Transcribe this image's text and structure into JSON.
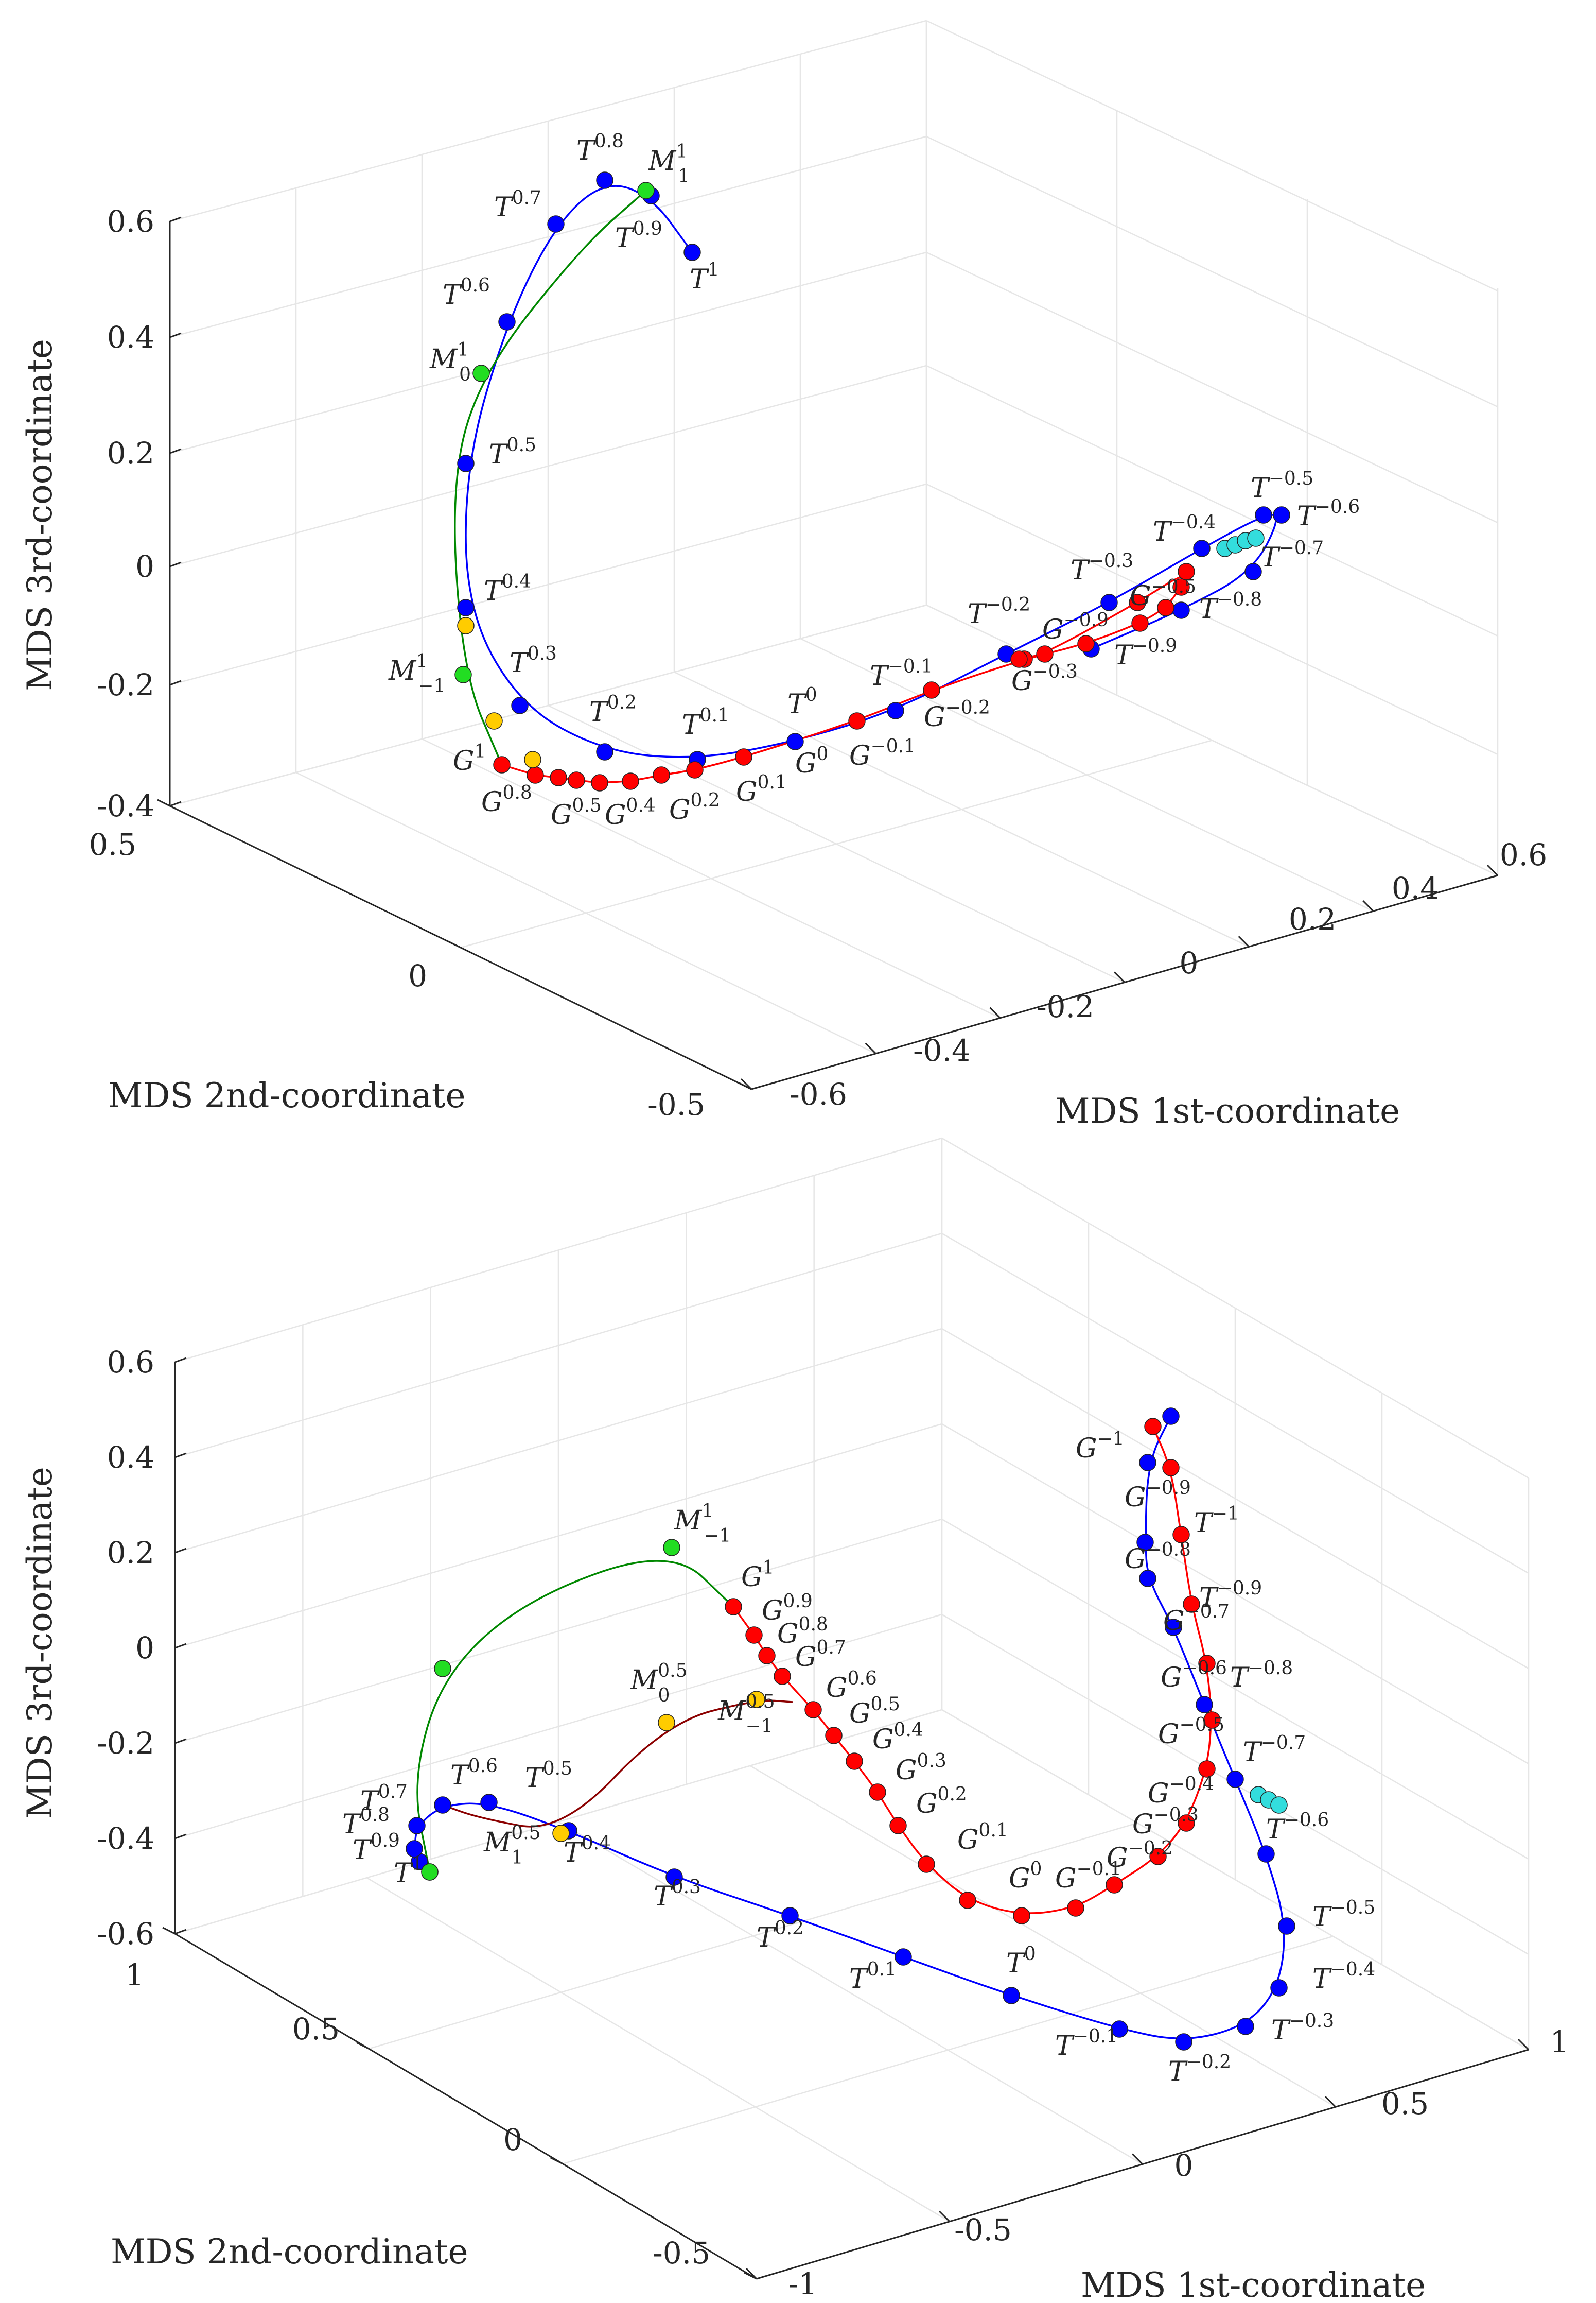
{
  "chart_data": [
    {
      "type": "line3d",
      "xlabel": "MDS 1st-coordinate",
      "ylabel": "MDS 2nd-coordinate",
      "zlabel": "MDS 3rd-coordinate",
      "xticks": [
        "-0.6",
        "-0.4",
        "-0.2",
        "0",
        "0.2",
        "0.4",
        "0.6"
      ],
      "yticks": [
        "-0.5",
        "0",
        "0.5"
      ],
      "zticks": [
        "-0.4",
        "-0.2",
        "0",
        "0.2",
        "0.4",
        "0.6"
      ],
      "series": [
        {
          "name": "T",
          "color": "#0000ff",
          "labels": [
            "T^1",
            "T^0.9",
            "T^0.8",
            "T^0.7",
            "T^0.6",
            "T^0.5",
            "T^0.4",
            "T^0.3",
            "T^0.2",
            "T^0.1",
            "T^0",
            "T^-0.1",
            "T^-0.2",
            "T^-0.3",
            "T^-0.4",
            "T^-0.5",
            "T^-0.6",
            "T^-0.7",
            "T^-0.8",
            "T^-0.9"
          ]
        },
        {
          "name": "G",
          "color": "#ff0000",
          "labels": [
            "G^1",
            "G^0.8",
            "G^0.5",
            "G^0.4",
            "G^0.2",
            "G^0.1",
            "G^0",
            "G^-0.1",
            "G^-0.2",
            "G^-0.3",
            "G^-0.5",
            "G^-0.9"
          ]
        },
        {
          "name": "M",
          "color": "#00cc00",
          "labels": [
            "M_1^1",
            "M_0^1",
            "M_-1^1"
          ]
        }
      ]
    },
    {
      "type": "line3d",
      "xlabel": "MDS 1st-coordinate",
      "ylabel": "MDS 2nd-coordinate",
      "zlabel": "MDS 3rd-coordinate",
      "xticks": [
        "-1",
        "-0.5",
        "0",
        "0.5",
        "1"
      ],
      "yticks": [
        "-0.5",
        "0",
        "0.5",
        "1"
      ],
      "zticks": [
        "-0.6",
        "-0.4",
        "-0.2",
        "0",
        "0.2",
        "0.4",
        "0.6"
      ],
      "series": [
        {
          "name": "T",
          "color": "#0000ff",
          "labels": [
            "T^1",
            "T^0.9",
            "T^0.8",
            "T^0.7",
            "T^0.6",
            "T^0.5",
            "T^0.4",
            "T^0.3",
            "T^0.2",
            "T^0.1",
            "T^0",
            "T^-0.1",
            "T^-0.2",
            "T^-0.3",
            "T^-0.4",
            "T^-0.5",
            "T^-0.6",
            "T^-0.7",
            "T^-0.8",
            "T^-0.9",
            "T^-1"
          ]
        },
        {
          "name": "G",
          "color": "#ff0000",
          "labels": [
            "G^1",
            "G^0.9",
            "G^0.8",
            "G^0.7",
            "G^0.6",
            "G^0.5",
            "G^0.4",
            "G^0.3",
            "G^0.2",
            "G^0.1",
            "G^0",
            "G^-0.1",
            "G^-0.2",
            "G^-0.3",
            "G^-0.4",
            "G^-0.5",
            "G^-0.6",
            "G^-0.7",
            "G^-0.8",
            "G^-0.9",
            "G^-1"
          ]
        },
        {
          "name": "M",
          "color": "#00cc00",
          "labels": [
            "M_-1^1",
            "M_0^0.5",
            "M_-1^0.5",
            "M_1^0.5"
          ]
        }
      ]
    }
  ]
}
